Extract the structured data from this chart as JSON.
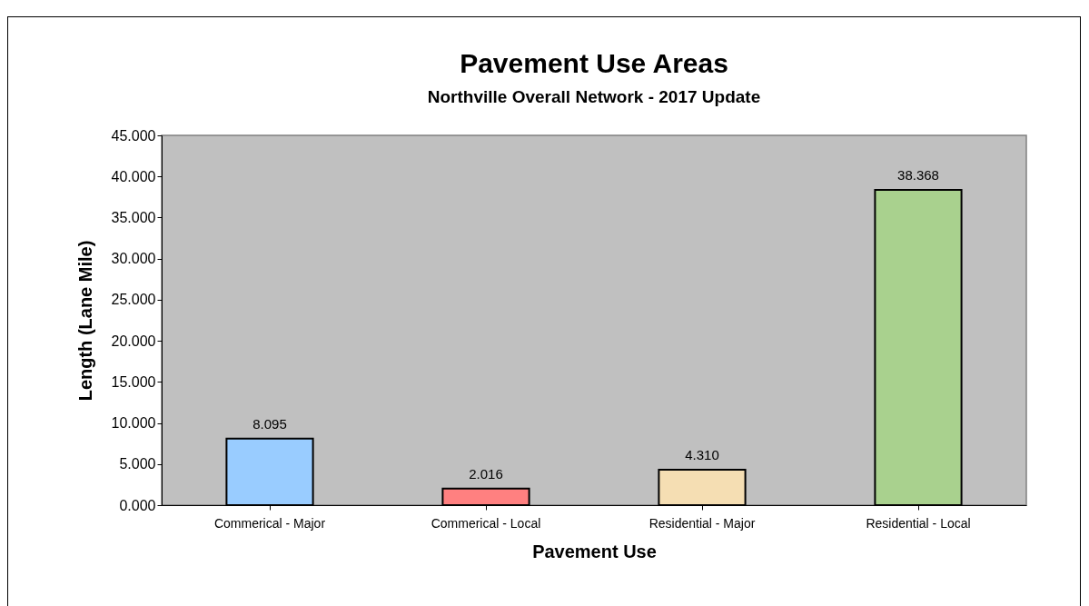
{
  "chart_data": {
    "type": "bar",
    "title": "Pavement Use Areas",
    "subtitle": "Northville Overall Network - 2017 Update",
    "xlabel": "Pavement Use",
    "ylabel": "Length (Lane Mile)",
    "categories": [
      "Commerical - Major",
      "Commerical - Local",
      "Residential - Major",
      "Residential - Local"
    ],
    "values": [
      8.095,
      2.016,
      4.31,
      38.368
    ],
    "colors": [
      "#99ccff",
      "#ff8080",
      "#f5deb3",
      "#a9d18e"
    ],
    "value_labels": [
      "8.095",
      "2.016",
      "4.310",
      "38.368"
    ],
    "ylim": [
      0,
      45
    ],
    "yticks": [
      {
        "value": 0,
        "label": "0.000"
      },
      {
        "value": 5,
        "label": "5.000"
      },
      {
        "value": 10,
        "label": "10.000"
      },
      {
        "value": 15,
        "label": "15.000"
      },
      {
        "value": 20,
        "label": "20.000"
      },
      {
        "value": 25,
        "label": "25.000"
      },
      {
        "value": 30,
        "label": "30.000"
      },
      {
        "value": 35,
        "label": "35.000"
      },
      {
        "value": 40,
        "label": "40.000"
      },
      {
        "value": 45,
        "label": "45.000"
      }
    ],
    "grid": false
  }
}
